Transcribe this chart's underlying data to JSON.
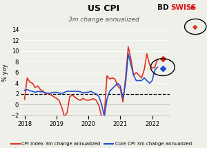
{
  "title": "US CPI",
  "subtitle": "3m change annualized",
  "ylabel": "% yoy",
  "ylim": [
    -2,
    14
  ],
  "yticks": [
    -2,
    0,
    2,
    4,
    6,
    8,
    10,
    12,
    14
  ],
  "dashed_line_y": 2,
  "bg_color": "#f0f0eb",
  "cpi_color": "#e03020",
  "core_color": "#2050d0",
  "cpi_x": [
    2018.0,
    2018.083,
    2018.167,
    2018.25,
    2018.333,
    2018.417,
    2018.5,
    2018.583,
    2018.667,
    2018.75,
    2018.833,
    2018.917,
    2019.0,
    2019.083,
    2019.167,
    2019.25,
    2019.333,
    2019.417,
    2019.5,
    2019.583,
    2019.667,
    2019.75,
    2019.833,
    2019.917,
    2020.0,
    2020.083,
    2020.167,
    2020.25,
    2020.333,
    2020.417,
    2020.5,
    2020.583,
    2020.667,
    2020.75,
    2020.833,
    2020.917,
    2021.0,
    2021.083,
    2021.167,
    2021.25,
    2021.333,
    2021.417,
    2021.5,
    2021.583,
    2021.667,
    2021.75,
    2021.833,
    2021.917,
    2022.0,
    2022.083,
    2022.167
  ],
  "cpi_y": [
    1.0,
    5.0,
    4.2,
    4.0,
    3.2,
    3.5,
    2.8,
    2.5,
    2.0,
    2.2,
    1.8,
    1.5,
    1.2,
    0.8,
    -0.5,
    -2.2,
    -1.5,
    1.5,
    1.8,
    1.4,
    1.0,
    0.8,
    1.2,
    0.9,
    0.8,
    1.0,
    1.1,
    0.8,
    -0.2,
    -2.3,
    -2.0,
    5.4,
    4.8,
    5.0,
    4.8,
    3.5,
    3.0,
    0.5,
    5.0,
    10.8,
    8.5,
    5.5,
    6.0,
    5.5,
    5.0,
    6.5,
    9.5,
    7.5,
    6.8,
    7.0,
    8.5
  ],
  "core_x": [
    2018.0,
    2018.083,
    2018.167,
    2018.25,
    2018.333,
    2018.417,
    2018.5,
    2018.583,
    2018.667,
    2018.75,
    2018.833,
    2018.917,
    2019.0,
    2019.083,
    2019.167,
    2019.25,
    2019.333,
    2019.417,
    2019.5,
    2019.583,
    2019.667,
    2019.75,
    2019.833,
    2019.917,
    2020.0,
    2020.083,
    2020.167,
    2020.25,
    2020.333,
    2020.417,
    2020.5,
    2020.583,
    2020.667,
    2020.75,
    2020.833,
    2020.917,
    2021.0,
    2021.083,
    2021.167,
    2021.25,
    2021.333,
    2021.417,
    2021.5,
    2021.583,
    2021.667,
    2021.75,
    2021.833,
    2021.917,
    2022.0,
    2022.083,
    2022.167
  ],
  "core_y": [
    2.7,
    2.8,
    2.6,
    2.5,
    2.3,
    2.5,
    2.4,
    2.4,
    2.2,
    2.1,
    2.2,
    2.3,
    2.3,
    2.2,
    2.1,
    2.3,
    2.5,
    2.5,
    2.5,
    2.5,
    2.5,
    2.4,
    2.2,
    2.3,
    2.3,
    2.5,
    2.2,
    2.0,
    1.5,
    0.0,
    -2.2,
    1.0,
    2.5,
    3.0,
    3.5,
    4.0,
    3.5,
    1.2,
    4.0,
    9.5,
    7.5,
    5.5,
    4.5,
    4.5,
    4.5,
    5.0,
    4.5,
    4.0,
    4.5,
    6.5,
    7.0
  ],
  "cpi_fc_x": 2022.33,
  "cpi_fc_y": 8.5,
  "core_fc_x": 2022.33,
  "core_fc_y": 6.8,
  "xticks": [
    2018,
    2019,
    2020,
    2021,
    2022
  ],
  "xlim": [
    2017.88,
    2022.55
  ]
}
